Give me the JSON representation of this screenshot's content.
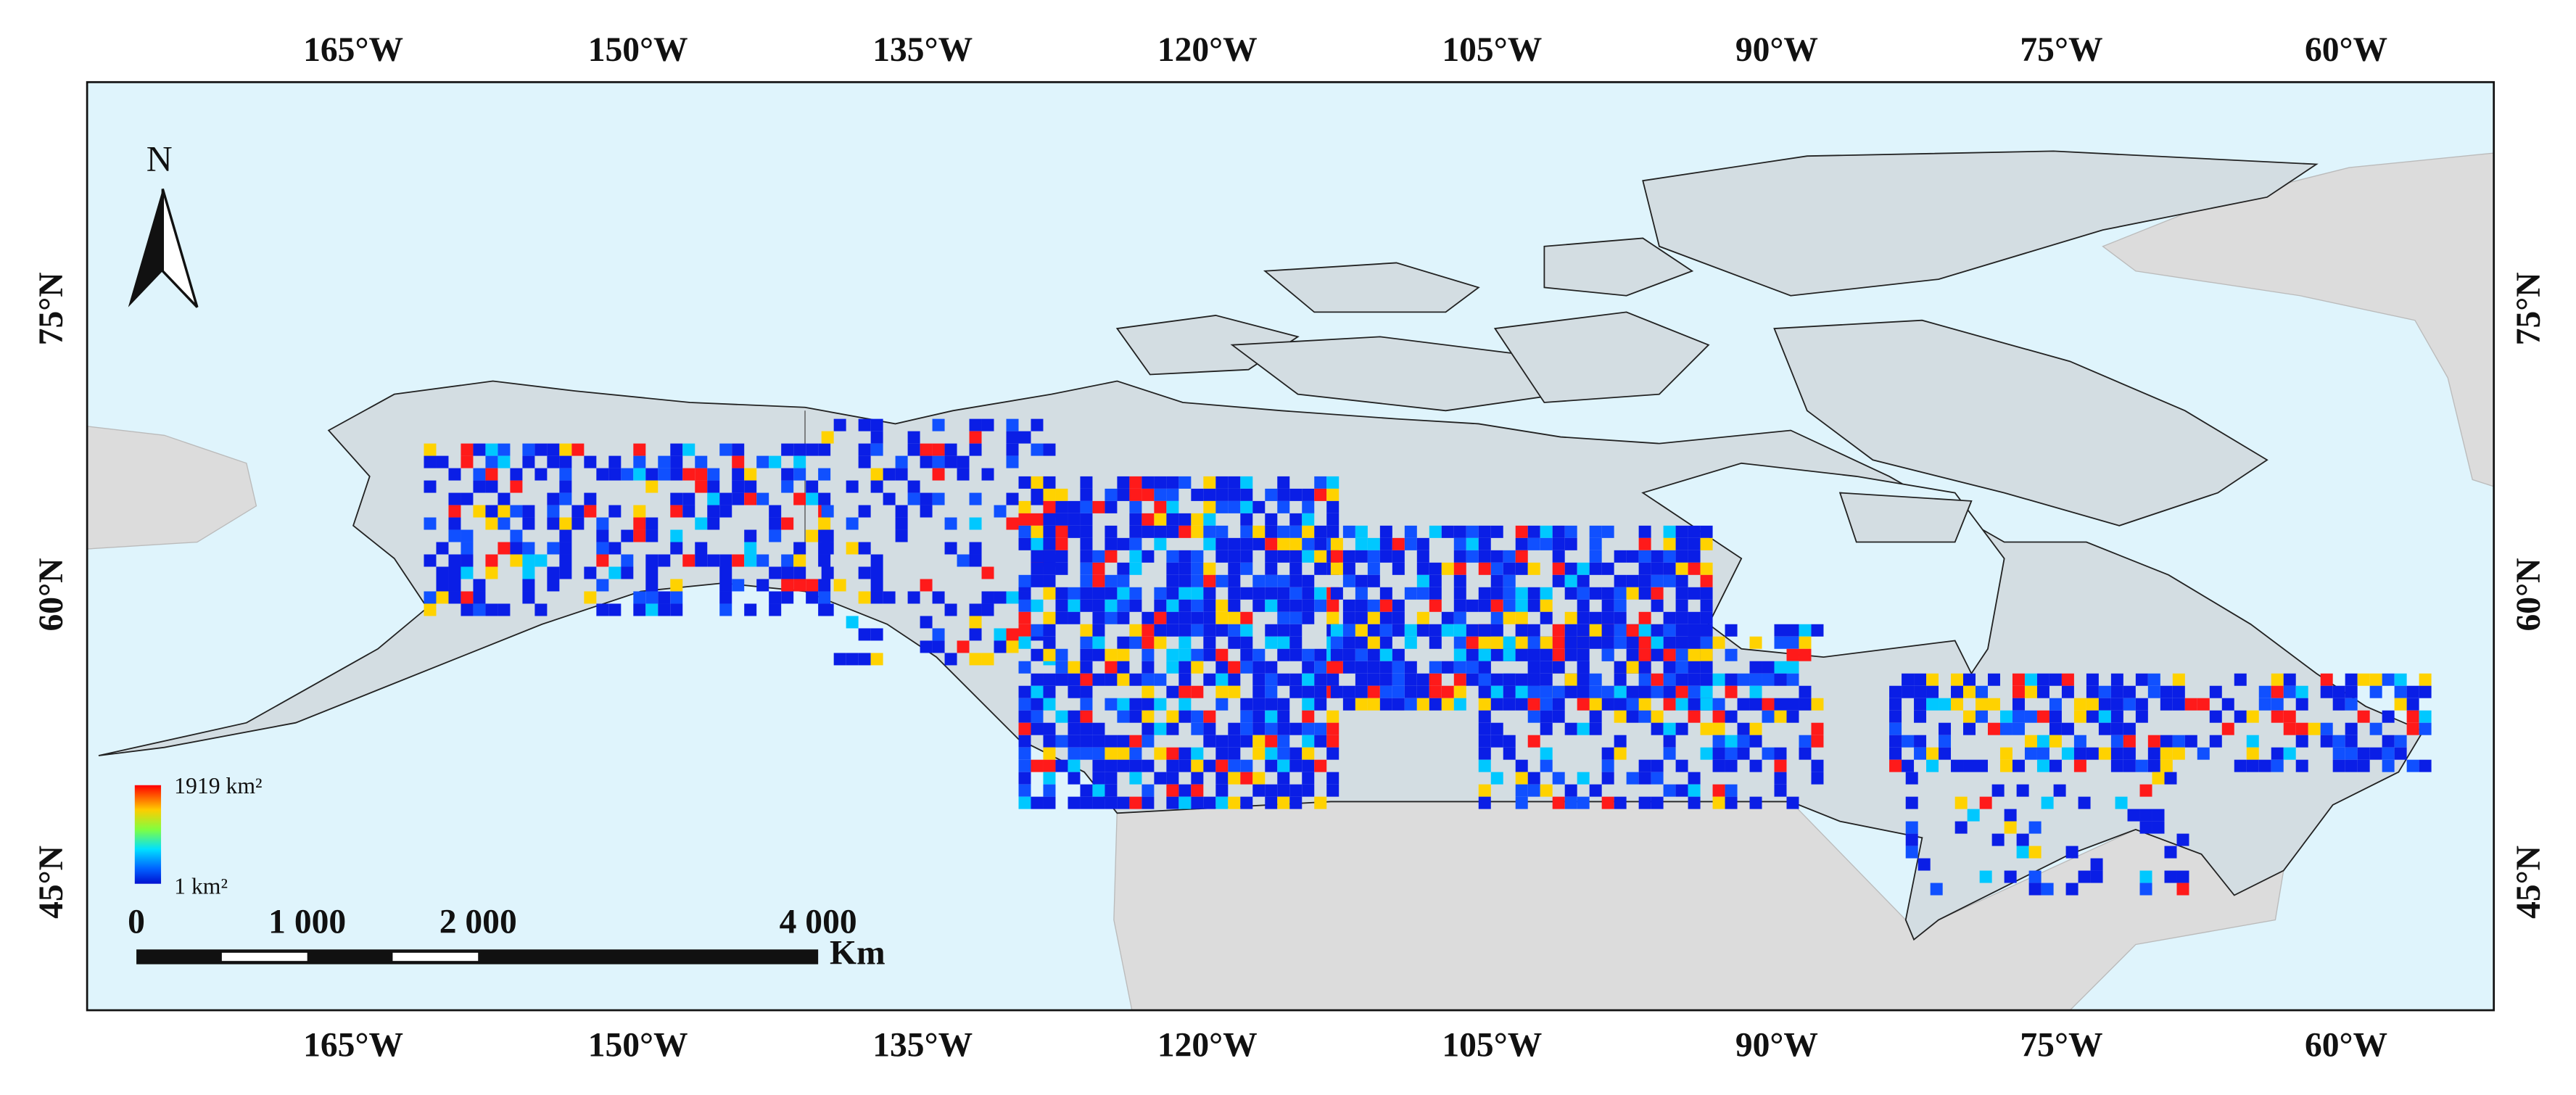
{
  "map": {
    "longitude_labels_top": [
      "165°W",
      "150°W",
      "135°W",
      "120°W",
      "105°W",
      "90°W",
      "75°W",
      "60°W"
    ],
    "longitude_labels_bottom": [
      "165°W",
      "150°W",
      "135°W",
      "120°W",
      "105°W",
      "90°W",
      "75°W",
      "60°W"
    ],
    "latitude_labels_left": [
      "75°N",
      "60°N",
      "45°N"
    ],
    "latitude_labels_right": [
      "75°N",
      "60°N",
      "45°N"
    ],
    "north": "N",
    "legend": {
      "max": "1919 km²",
      "min": "1 km²"
    },
    "scale_bar": {
      "labels": [
        "0",
        "1 000",
        "2 000",
        "4 000"
      ],
      "unit": "Km"
    }
  }
}
